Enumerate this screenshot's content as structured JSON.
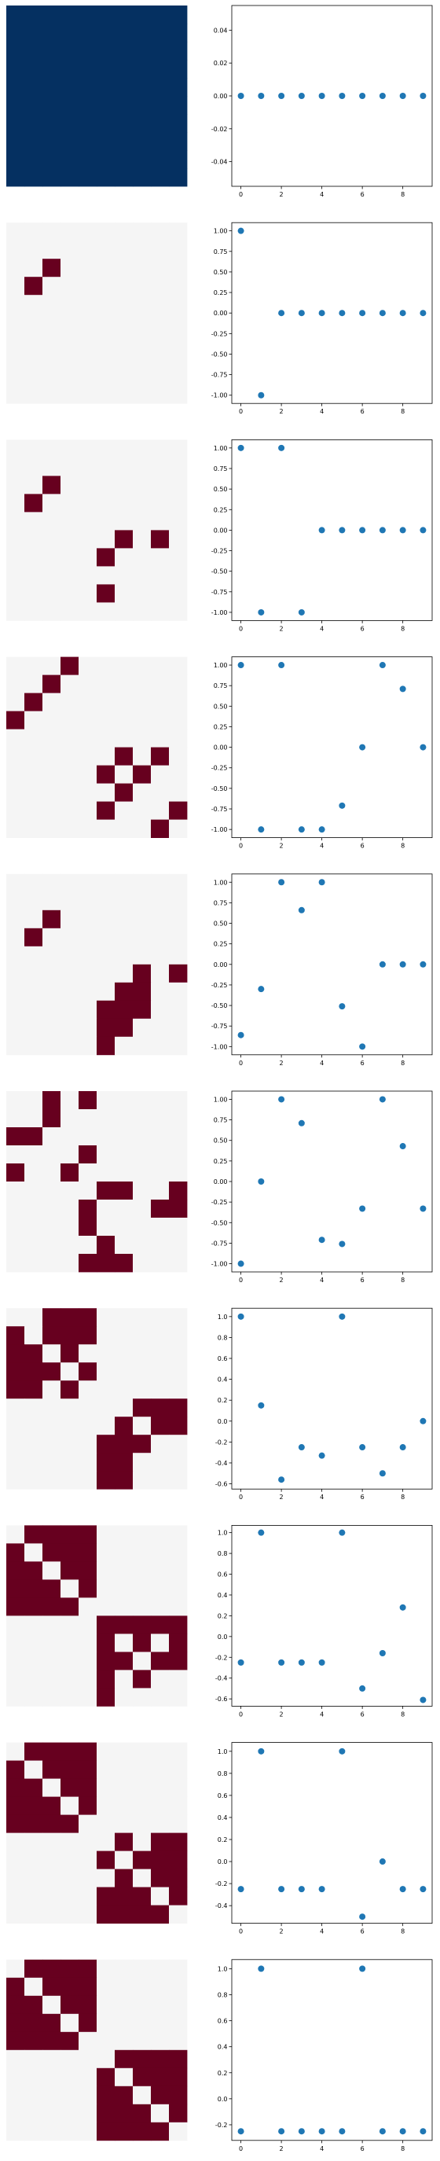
{
  "colors": {
    "off": "#f5f5f5",
    "on": "#67001f",
    "dense": "#053061",
    "point": "#1f77b4",
    "frame": "#000000"
  },
  "chart_data": [
    {
      "type": "heatmap",
      "size": 10,
      "cells": "1111111111\n1111111111\n1111111111\n1111111111\n1111111111\n1111111111\n1111111111\n1111111111\n1111111111\n1111111111",
      "palette": "dense"
    },
    {
      "type": "scatter",
      "x": [
        0,
        1,
        2,
        3,
        4,
        5,
        6,
        7,
        8,
        9
      ],
      "y": [
        0,
        0,
        0,
        0,
        0,
        0,
        0,
        0,
        0,
        0
      ],
      "ylim": [
        -0.055,
        0.055
      ],
      "yticks": [
        "-0.04",
        "-0.02",
        "0.00",
        "0.02",
        "0.04"
      ],
      "ytick_values": [
        -0.04,
        -0.02,
        0,
        0.02,
        0.04
      ],
      "xticks": [
        "0",
        "2",
        "4",
        "6",
        "8"
      ],
      "xlim": [
        -0.45,
        9.45
      ]
    },
    {
      "type": "heatmap",
      "size": 10,
      "cells": "0000000000\n0000000000\n0010000000\n0100000000\n0000000000\n0000000000\n0000000000\n0000000000\n0000000000\n0000000000",
      "palette": "binary"
    },
    {
      "type": "scatter",
      "x": [
        0,
        1,
        2,
        3,
        4,
        5,
        6,
        7,
        8,
        9
      ],
      "y": [
        1,
        -1,
        0,
        0,
        0,
        0,
        0,
        0,
        0,
        0
      ],
      "ylim": [
        -1.1,
        1.1
      ],
      "yticks": [
        "-1.00",
        "-0.75",
        "-0.50",
        "-0.25",
        "0.00",
        "0.25",
        "0.50",
        "0.75",
        "1.00"
      ],
      "ytick_values": [
        -1,
        -0.75,
        -0.5,
        -0.25,
        0,
        0.25,
        0.5,
        0.75,
        1
      ],
      "xticks": [
        "0",
        "2",
        "4",
        "6",
        "8"
      ],
      "xlim": [
        -0.45,
        9.45
      ]
    },
    {
      "type": "heatmap",
      "size": 10,
      "cells": "0000000000\n0000000000\n0010000000\n0100000000\n0000000000\n0000001010\n0000010000\n0000000000\n0000010000\n0000000000",
      "palette": "binary"
    },
    {
      "type": "scatter",
      "x": [
        0,
        1,
        2,
        3,
        4,
        5,
        6,
        7,
        8,
        9
      ],
      "y": [
        1,
        -1,
        1,
        -1,
        0,
        0,
        0,
        0,
        0,
        0
      ],
      "ylim": [
        -1.1,
        1.1
      ],
      "yticks": [
        "-1.00",
        "-0.75",
        "-0.50",
        "-0.25",
        "0.00",
        "0.25",
        "0.50",
        "0.75",
        "1.00"
      ],
      "ytick_values": [
        -1,
        -0.75,
        -0.5,
        -0.25,
        0,
        0.25,
        0.5,
        0.75,
        1
      ],
      "xticks": [
        "0",
        "2",
        "4",
        "6",
        "8"
      ],
      "xlim": [
        -0.45,
        9.45
      ]
    },
    {
      "type": "heatmap",
      "size": 10,
      "cells": "0001000000\n0010000000\n0100000000\n1000000000\n0000000000\n0000001010\n0000010100\n0000001000\n0000010001\n0000000010",
      "palette": "binary"
    },
    {
      "type": "scatter",
      "x": [
        0,
        1,
        2,
        3,
        4,
        5,
        6,
        7,
        8,
        9
      ],
      "y": [
        1,
        -1,
        1,
        -1,
        -1,
        -0.71,
        0,
        1,
        0.71,
        0
      ],
      "ylim": [
        -1.1,
        1.1
      ],
      "yticks": [
        "-1.00",
        "-0.75",
        "-0.50",
        "-0.25",
        "0.00",
        "0.25",
        "0.50",
        "0.75",
        "1.00"
      ],
      "ytick_values": [
        -1,
        -0.75,
        -0.5,
        -0.25,
        0,
        0.25,
        0.5,
        0.75,
        1
      ],
      "xticks": [
        "0",
        "2",
        "4",
        "6",
        "8"
      ],
      "xlim": [
        -0.45,
        9.45
      ]
    },
    {
      "type": "heatmap",
      "size": 10,
      "cells": "0000000000\n0000000000\n0010000000\n0100000000\n0000000000\n0000000101\n0000001100\n0000011100\n0000011000\n0000010000",
      "palette": "binary"
    },
    {
      "type": "scatter",
      "x": [
        0,
        1,
        2,
        3,
        4,
        5,
        6,
        7,
        8,
        9
      ],
      "y": [
        -0.86,
        -0.3,
        1,
        0.66,
        1,
        -0.51,
        -1,
        0,
        0,
        0
      ],
      "ylim": [
        -1.1,
        1.1
      ],
      "yticks": [
        "-1.00",
        "-0.75",
        "-0.50",
        "-0.25",
        "0.00",
        "0.25",
        "0.50",
        "0.75",
        "1.00"
      ],
      "ytick_values": [
        -1,
        -0.75,
        -0.5,
        -0.25,
        0,
        0.25,
        0.5,
        0.75,
        1
      ],
      "xticks": [
        "0",
        "2",
        "4",
        "6",
        "8"
      ],
      "xlim": [
        -0.45,
        9.45
      ]
    },
    {
      "type": "heatmap",
      "size": 10,
      "cells": "0010100000\n0010000000\n1100000000\n0000100000\n1001000000\n0000011001\n0000100011\n0000100000\n0000010000\n0000111000",
      "palette": "binary"
    },
    {
      "type": "scatter",
      "x": [
        0,
        1,
        2,
        3,
        4,
        5,
        6,
        7,
        8,
        9
      ],
      "y": [
        -1,
        0,
        1,
        0.71,
        -0.71,
        -0.76,
        -0.33,
        1,
        0.43,
        -0.33
      ],
      "ylim": [
        -1.1,
        1.1
      ],
      "yticks": [
        "-1.00",
        "-0.75",
        "-0.50",
        "-0.25",
        "0.00",
        "0.25",
        "0.50",
        "0.75",
        "1.00"
      ],
      "ytick_values": [
        -1,
        -0.75,
        -0.5,
        -0.25,
        0,
        0.25,
        0.5,
        0.75,
        1
      ],
      "xticks": [
        "0",
        "2",
        "4",
        "6",
        "8"
      ],
      "xlim": [
        -0.45,
        9.45
      ]
    },
    {
      "type": "heatmap",
      "size": 10,
      "cells": "0011100000\n1011100000\n1101000000\n1110100000\n1101000000\n0000000111\n0000001011\n0000011100\n0000011000\n0000011000",
      "palette": "binary"
    },
    {
      "type": "scatter",
      "x": [
        0,
        1,
        2,
        3,
        4,
        5,
        6,
        7,
        8,
        9
      ],
      "y": [
        1,
        0.15,
        -0.56,
        -0.25,
        -0.33,
        1,
        -0.25,
        -0.5,
        -0.25,
        0
      ],
      "ylim": [
        -0.65,
        1.08
      ],
      "yticks": [
        "-0.6",
        "-0.4",
        "-0.2",
        "0.0",
        "0.2",
        "0.4",
        "0.6",
        "0.8",
        "1.0"
      ],
      "ytick_values": [
        -0.6,
        -0.4,
        -0.2,
        0,
        0.2,
        0.4,
        0.6,
        0.8,
        1
      ],
      "xticks": [
        "0",
        "2",
        "4",
        "6",
        "8"
      ],
      "xlim": [
        -0.45,
        9.45
      ]
    },
    {
      "type": "heatmap",
      "size": 10,
      "cells": "0111100000\n1011100000\n1101100000\n1110100000\n1111000000\n0000011111\n0000010101\n0000011011\n0000010100\n0000010000",
      "palette": "binary"
    },
    {
      "type": "scatter",
      "x": [
        0,
        1,
        2,
        3,
        4,
        5,
        6,
        7,
        8,
        9
      ],
      "y": [
        -0.25,
        1,
        -0.25,
        -0.25,
        -0.25,
        1,
        -0.5,
        -0.16,
        0.28,
        -0.61
      ],
      "ylim": [
        -0.67,
        1.07
      ],
      "yticks": [
        "-0.6",
        "-0.4",
        "-0.2",
        "0.0",
        "0.2",
        "0.4",
        "0.6",
        "0.8",
        "1.0"
      ],
      "ytick_values": [
        -0.6,
        -0.4,
        -0.2,
        0,
        0.2,
        0.4,
        0.6,
        0.8,
        1
      ],
      "xticks": [
        "0",
        "2",
        "4",
        "6",
        "8"
      ],
      "xlim": [
        -0.45,
        9.45
      ]
    },
    {
      "type": "heatmap",
      "size": 10,
      "cells": "0111100000\n1011100000\n1101100000\n1110100000\n1111000000\n0000001011\n0000010111\n0000001011\n0000011101\n0000011110",
      "palette": "binary"
    },
    {
      "type": "scatter",
      "x": [
        0,
        1,
        2,
        3,
        4,
        5,
        6,
        7,
        8,
        9
      ],
      "y": [
        -0.25,
        1,
        -0.25,
        -0.25,
        -0.25,
        1,
        -0.5,
        0,
        -0.25,
        -0.25
      ],
      "ylim": [
        -0.56,
        1.08
      ],
      "yticks": [
        "-0.4",
        "-0.2",
        "0.0",
        "0.2",
        "0.4",
        "0.6",
        "0.8",
        "1.0"
      ],
      "ytick_values": [
        -0.4,
        -0.2,
        0,
        0.2,
        0.4,
        0.6,
        0.8,
        1
      ],
      "xticks": [
        "0",
        "2",
        "4",
        "6",
        "8"
      ],
      "xlim": [
        -0.45,
        9.45
      ]
    },
    {
      "type": "heatmap",
      "size": 10,
      "cells": "0111100000\n1011100000\n1101100000\n1110100000\n1111000000\n0000001111\n0000010111\n0000011011\n0000011101\n0000011110",
      "palette": "binary"
    },
    {
      "type": "scatter",
      "x": [
        0,
        1,
        2,
        3,
        4,
        5,
        6,
        7,
        8,
        9
      ],
      "y": [
        -0.25,
        1,
        -0.25,
        -0.25,
        -0.25,
        -0.25,
        1,
        -0.25,
        -0.25,
        -0.25
      ],
      "ylim": [
        -0.32,
        1.07
      ],
      "yticks": [
        "-0.2",
        "0.0",
        "0.2",
        "0.4",
        "0.6",
        "0.8",
        "1.0"
      ],
      "ytick_values": [
        -0.2,
        0,
        0.2,
        0.4,
        0.6,
        0.8,
        1
      ],
      "xticks": [
        "0",
        "2",
        "4",
        "6",
        "8"
      ],
      "xlim": [
        -0.45,
        9.45
      ]
    }
  ]
}
